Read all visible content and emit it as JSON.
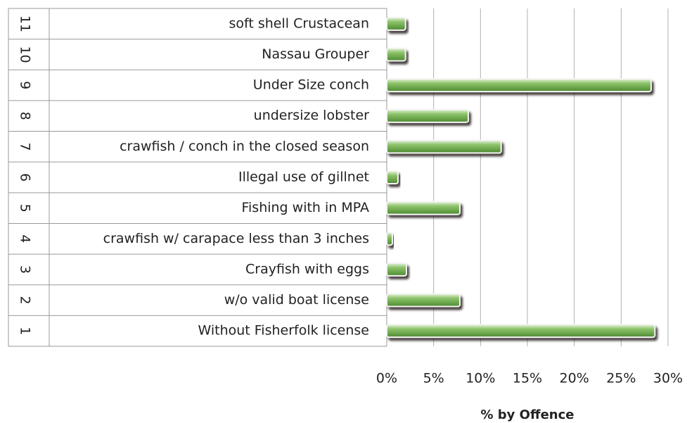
{
  "chart_data": {
    "type": "bar",
    "orientation": "horizontal",
    "x_label": "% by Offence",
    "category_numbers": [
      "1",
      "2",
      "3",
      "4",
      "5",
      "6",
      "7",
      "8",
      "9",
      "10",
      "11"
    ],
    "categories": [
      "Without Fisherfolk license",
      "w/o valid boat license",
      "Crayfish with eggs",
      "crawfish w/ carapace less than 3 inches",
      "Fishing with in MPA",
      "Illegal use of gillnet",
      "crawfish / conch in the closed season",
      "undersize lobster",
      "Under Size conch",
      "Nassau Grouper",
      "soft shell Crustacean"
    ],
    "values": [
      28.6,
      7.8,
      2.1,
      0.6,
      7.8,
      1.2,
      12.2,
      8.7,
      28.2,
      2.0,
      2.0
    ],
    "color": "#6fae4e",
    "xlim": [
      0,
      30
    ],
    "xticks": [
      {
        "value": 0,
        "label": "0%"
      },
      {
        "value": 5,
        "label": "5%"
      },
      {
        "value": 10,
        "label": "10%"
      },
      {
        "value": 15,
        "label": "15%"
      },
      {
        "value": 20,
        "label": "20%"
      },
      {
        "value": 25,
        "label": "25%"
      },
      {
        "value": 30,
        "label": "30%"
      }
    ],
    "grid": true
  }
}
